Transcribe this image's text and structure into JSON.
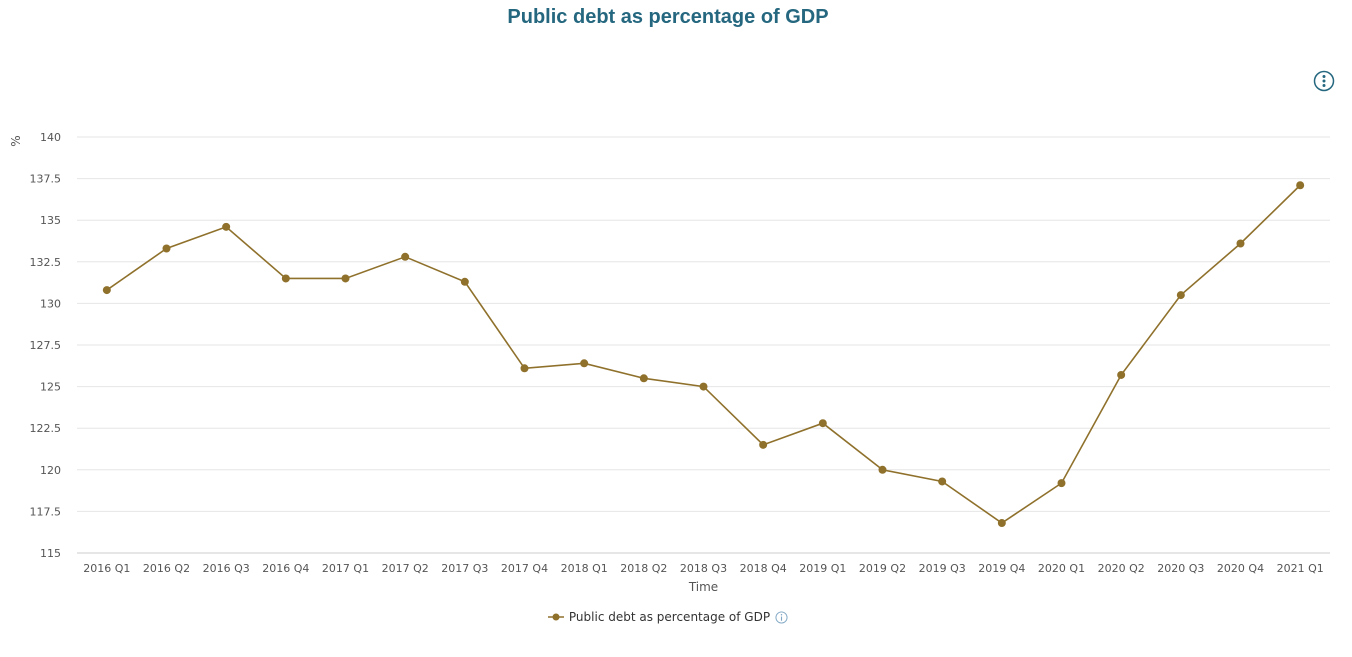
{
  "title": "Public debt as percentage of GDP",
  "colors": {
    "title": "#24677f",
    "series": "#8f712c",
    "grid": "#e6e6e6",
    "axis": "#cccccc",
    "info": "#7fa7c4"
  },
  "icons": {
    "menu": "kebab-menu-icon",
    "info": "info-icon"
  },
  "chart_data": {
    "type": "line",
    "title": "Public debt as percentage of GDP",
    "xlabel": "Time",
    "ylabel": "%",
    "ylim": [
      115,
      140
    ],
    "yticks": [
      "115",
      "117.5",
      "120",
      "122.5",
      "125",
      "127.5",
      "130",
      "132.5",
      "135",
      "137.5",
      "140"
    ],
    "categories": [
      "2016 Q1",
      "2016 Q2",
      "2016 Q3",
      "2016 Q4",
      "2017 Q1",
      "2017 Q2",
      "2017 Q3",
      "2017 Q4",
      "2018 Q1",
      "2018 Q2",
      "2018 Q3",
      "2018 Q4",
      "2019 Q1",
      "2019 Q2",
      "2019 Q3",
      "2019 Q4",
      "2020 Q1",
      "2020 Q2",
      "2020 Q3",
      "2020 Q4",
      "2021 Q1"
    ],
    "series": [
      {
        "name": "Public debt as percentage of GDP",
        "values": [
          130.8,
          133.3,
          134.6,
          131.5,
          131.5,
          132.8,
          131.3,
          126.1,
          126.4,
          125.5,
          125.0,
          121.5,
          122.8,
          120.0,
          119.3,
          116.8,
          119.2,
          125.7,
          130.5,
          133.6,
          137.1
        ]
      }
    ],
    "grid": true,
    "legend": "bottom-center"
  }
}
